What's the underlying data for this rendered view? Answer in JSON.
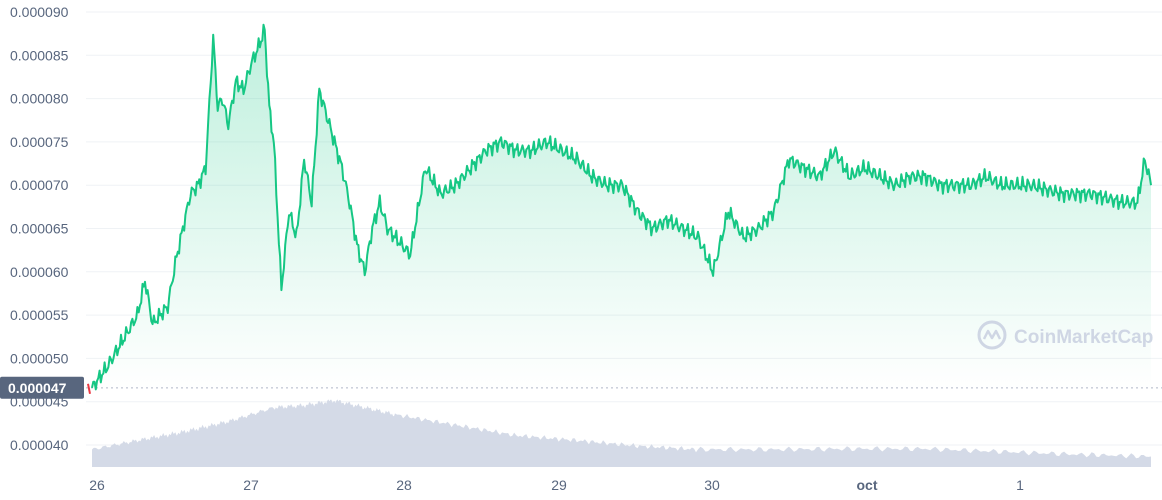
{
  "chart_data": {
    "type": "area",
    "title": "",
    "xlabel": "",
    "ylabel": "",
    "ylim": [
      3.75e-05,
      9.1e-05
    ],
    "y_ticks": [
      "0.000040",
      "0.000045",
      "0.000050",
      "0.000055",
      "0.000060",
      "0.000065",
      "0.000070",
      "0.000075",
      "0.000080",
      "0.000085",
      "0.000090"
    ],
    "x_ticks": [
      {
        "label": "26",
        "bold": false
      },
      {
        "label": "27",
        "bold": false
      },
      {
        "label": "28",
        "bold": false
      },
      {
        "label": "29",
        "bold": false
      },
      {
        "label": "30",
        "bold": false
      },
      {
        "label": "oct",
        "bold": true
      },
      {
        "label": "1",
        "bold": false
      }
    ],
    "baseline_value": 4.66e-05,
    "baseline_label": "0.000047",
    "grid": true,
    "price_series": {
      "name": "",
      "x_days": [
        0.0,
        0.1,
        0.2,
        0.3,
        0.35,
        0.4,
        0.45,
        0.5,
        0.55,
        0.6,
        0.65,
        0.7,
        0.75,
        0.8,
        0.83,
        0.86,
        0.9,
        0.95,
        1.0,
        1.05,
        1.1,
        1.14,
        1.17,
        1.2,
        1.25,
        1.3,
        1.35,
        1.4,
        1.45,
        1.5,
        1.55,
        1.6,
        1.65,
        1.7,
        1.75,
        1.8,
        1.85,
        1.9,
        1.95,
        2.0,
        2.1,
        2.2,
        2.3,
        2.4,
        2.5,
        2.6,
        2.7,
        2.8,
        2.9,
        3.0,
        3.1,
        3.2,
        3.3,
        3.4,
        3.5,
        3.6,
        3.7,
        3.8,
        3.9,
        4.0,
        4.1,
        4.2,
        4.3,
        4.4,
        4.5,
        4.6,
        4.7,
        4.8,
        4.9,
        5.0,
        5.1,
        5.2,
        5.3,
        5.4,
        5.5,
        5.6,
        5.7,
        5.8,
        5.9,
        6.0,
        6.2,
        6.4,
        6.6,
        6.8,
        6.9,
        6.95,
        6.99
      ],
      "values": [
        4.66e-05,
        4.9e-05,
        5.2e-05,
        5.5e-05,
        5.9e-05,
        5.4e-05,
        5.5e-05,
        5.6e-05,
        6.1e-05,
        6.5e-05,
        6.9e-05,
        7e-05,
        7.2e-05,
        8.7e-05,
        7.9e-05,
        8e-05,
        7.7e-05,
        8.2e-05,
        8.1e-05,
        8.4e-05,
        8.6e-05,
        8.8e-05,
        7.9e-05,
        7.5e-05,
        5.8e-05,
        6.7e-05,
        6.4e-05,
        7.3e-05,
        6.8e-05,
        8.1e-05,
        7.8e-05,
        7.5e-05,
        7.2e-05,
        6.8e-05,
        6.3e-05,
        6e-05,
        6.5e-05,
        6.8e-05,
        6.5e-05,
        6.4e-05,
        6.2e-05,
        7.2e-05,
        6.9e-05,
        7e-05,
        7.2e-05,
        7.4e-05,
        7.5e-05,
        7.4e-05,
        7.4e-05,
        7.5e-05,
        7.4e-05,
        7.3e-05,
        7.1e-05,
        7e-05,
        7e-05,
        6.7e-05,
        6.5e-05,
        6.6e-05,
        6.5e-05,
        6.4e-05,
        6e-05,
        6.7e-05,
        6.4e-05,
        6.5e-05,
        6.7e-05,
        7.3e-05,
        7.2e-05,
        7.1e-05,
        7.4e-05,
        7.1e-05,
        7.2e-05,
        7.1e-05,
        7e-05,
        7.1e-05,
        7.1e-05,
        7e-05,
        7e-05,
        7e-05,
        7.1e-05,
        7e-05,
        7e-05,
        6.9e-05,
        6.9e-05,
        6.8e-05,
        6.8e-05,
        7.3e-05,
        7e-05
      ]
    },
    "volume_series": {
      "name": "",
      "x_days": [
        0.0,
        0.3,
        0.6,
        0.9,
        1.2,
        1.4,
        1.6,
        1.8,
        2.0,
        2.4,
        2.8,
        3.2,
        3.6,
        4.0,
        4.5,
        5.0,
        5.5,
        6.0,
        6.5,
        6.99
      ],
      "relative_values": [
        0.25,
        0.38,
        0.5,
        0.65,
        0.85,
        0.88,
        0.95,
        0.85,
        0.75,
        0.6,
        0.45,
        0.38,
        0.3,
        0.25,
        0.25,
        0.26,
        0.26,
        0.22,
        0.18,
        0.15
      ]
    },
    "colors": {
      "line": "#16c784",
      "area_top": "#16c784",
      "negative": "#ea3943",
      "volume": "#cfd6e4",
      "badge": "#58667e",
      "baseline": "#b0b8c6"
    }
  },
  "watermark": {
    "text": "CoinMarketCap"
  }
}
